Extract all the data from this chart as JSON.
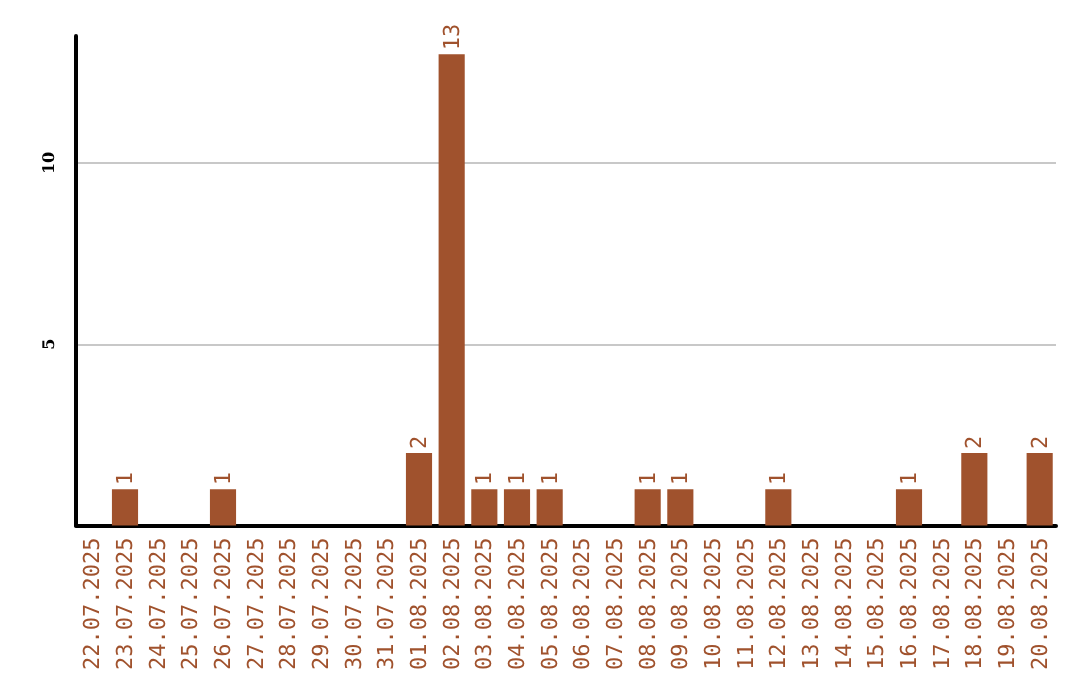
{
  "chart_data": {
    "type": "bar",
    "categories": [
      "22.07.2025",
      "23.07.2025",
      "24.07.2025",
      "25.07.2025",
      "26.07.2025",
      "27.07.2025",
      "28.07.2025",
      "29.07.2025",
      "30.07.2025",
      "31.07.2025",
      "01.08.2025",
      "02.08.2025",
      "03.08.2025",
      "04.08.2025",
      "05.08.2025",
      "06.08.2025",
      "07.08.2025",
      "08.08.2025",
      "09.08.2025",
      "10.08.2025",
      "11.08.2025",
      "12.08.2025",
      "13.08.2025",
      "14.08.2025",
      "15.08.2025",
      "16.08.2025",
      "17.08.2025",
      "18.08.2025",
      "19.08.2025",
      "20.08.2025"
    ],
    "values": [
      0,
      1,
      0,
      0,
      1,
      0,
      0,
      0,
      0,
      0,
      2,
      13,
      1,
      1,
      1,
      0,
      0,
      1,
      1,
      0,
      0,
      1,
      0,
      0,
      0,
      1,
      0,
      2,
      0,
      2
    ],
    "value_labels": [
      null,
      "1",
      null,
      null,
      "1",
      null,
      null,
      null,
      null,
      null,
      "2",
      "13",
      "1",
      "1",
      "1",
      null,
      null,
      "1",
      "1",
      null,
      null,
      "1",
      null,
      null,
      null,
      "1",
      null,
      "2",
      null,
      "2"
    ],
    "color": "#a0522d",
    "ylim": [
      0,
      13.5
    ],
    "yticks": [
      5,
      10
    ],
    "grid": "y"
  }
}
